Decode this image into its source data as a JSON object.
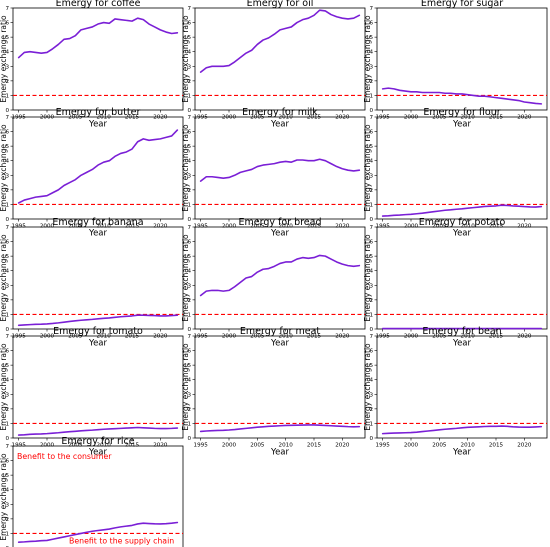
{
  "colors": {
    "series": "#7a1fd6",
    "reference": "#ff0000",
    "axes": "#000000"
  },
  "chart_data": [
    {
      "type": "line",
      "title": "Emergy for coffee",
      "xlabel": "Year",
      "ylabel": "Emergy exchange ratio",
      "xlim": [
        1994,
        2024
      ],
      "ylim": [
        0,
        7
      ],
      "xticks": [
        "1995",
        "2000",
        "2005",
        "2010",
        "2015",
        "2020"
      ],
      "yticks": [
        "0",
        "1",
        "2",
        "3",
        "4",
        "5",
        "6",
        "7"
      ],
      "reference_line": 1,
      "grid": false,
      "x": [
        1995,
        1996,
        1997,
        1998,
        1999,
        2000,
        2001,
        2002,
        2003,
        2004,
        2005,
        2006,
        2007,
        2008,
        2009,
        2010,
        2011,
        2012,
        2013,
        2014,
        2015,
        2016,
        2017,
        2018,
        2019,
        2020,
        2021,
        2022,
        2023
      ],
      "y": [
        3.6,
        3.95,
        4.0,
        3.95,
        3.9,
        3.95,
        4.2,
        4.5,
        4.85,
        4.9,
        5.1,
        5.5,
        5.6,
        5.7,
        5.9,
        6.0,
        5.95,
        6.25,
        6.2,
        6.15,
        6.1,
        6.3,
        6.2,
        5.9,
        5.7,
        5.5,
        5.35,
        5.25,
        5.3
      ]
    },
    {
      "type": "line",
      "title": "Emergy for oil",
      "xlabel": "Year",
      "ylabel": "Emergy exchange ratio",
      "xlim": [
        1994,
        2024
      ],
      "ylim": [
        0,
        7
      ],
      "xticks": [
        "1995",
        "2000",
        "2005",
        "2010",
        "2015",
        "2020"
      ],
      "yticks": [
        "0",
        "1",
        "2",
        "3",
        "4",
        "5",
        "6",
        "7"
      ],
      "reference_line": 1,
      "grid": false,
      "x": [
        1995,
        1996,
        1997,
        1998,
        1999,
        2000,
        2001,
        2002,
        2003,
        2004,
        2005,
        2006,
        2007,
        2008,
        2009,
        2010,
        2011,
        2012,
        2013,
        2014,
        2015,
        2016,
        2017,
        2018,
        2019,
        2020,
        2021,
        2022,
        2023
      ],
      "y": [
        2.6,
        2.9,
        3.0,
        3.0,
        3.0,
        3.05,
        3.3,
        3.6,
        3.9,
        4.1,
        4.5,
        4.8,
        4.95,
        5.2,
        5.5,
        5.6,
        5.7,
        6.0,
        6.2,
        6.3,
        6.5,
        6.85,
        6.8,
        6.55,
        6.4,
        6.3,
        6.25,
        6.3,
        6.5
      ]
    },
    {
      "type": "line",
      "title": "Emergy for sugar",
      "xlabel": "Year",
      "ylabel": "Emergy exchange ratio",
      "xlim": [
        1994,
        2024
      ],
      "ylim": [
        0,
        7
      ],
      "xticks": [
        "1995",
        "2000",
        "2005",
        "2010",
        "2015",
        "2020"
      ],
      "yticks": [
        "0",
        "1",
        "2",
        "3",
        "4",
        "5",
        "6",
        "7"
      ],
      "reference_line": 1,
      "grid": false,
      "x": [
        1995,
        1996,
        1997,
        1998,
        1999,
        2000,
        2001,
        2002,
        2003,
        2004,
        2005,
        2006,
        2007,
        2008,
        2009,
        2010,
        2011,
        2012,
        2013,
        2014,
        2015,
        2016,
        2017,
        2018,
        2019,
        2020,
        2021,
        2022,
        2023
      ],
      "y": [
        1.45,
        1.5,
        1.45,
        1.35,
        1.3,
        1.25,
        1.25,
        1.2,
        1.2,
        1.2,
        1.2,
        1.15,
        1.15,
        1.1,
        1.1,
        1.05,
        1.0,
        0.95,
        0.95,
        0.9,
        0.85,
        0.8,
        0.75,
        0.7,
        0.65,
        0.55,
        0.5,
        0.45,
        0.42
      ]
    },
    {
      "type": "line",
      "title": "Emergy for butter",
      "xlabel": "Year",
      "ylabel": "Emergy exchange ratio",
      "xlim": [
        1994,
        2024
      ],
      "ylim": [
        0,
        7
      ],
      "xticks": [
        "1995",
        "2000",
        "2005",
        "2010",
        "2015",
        "2020"
      ],
      "yticks": [
        "0",
        "1",
        "2",
        "3",
        "4",
        "5",
        "6",
        "7"
      ],
      "reference_line": 1,
      "grid": false,
      "x": [
        1995,
        1996,
        1997,
        1998,
        1999,
        2000,
        2001,
        2002,
        2003,
        2004,
        2005,
        2006,
        2007,
        2008,
        2009,
        2010,
        2011,
        2012,
        2013,
        2014,
        2015,
        2016,
        2017,
        2018,
        2019,
        2020,
        2021,
        2022,
        2023
      ],
      "y": [
        1.1,
        1.3,
        1.4,
        1.5,
        1.55,
        1.6,
        1.8,
        2.0,
        2.3,
        2.5,
        2.7,
        3.0,
        3.2,
        3.4,
        3.7,
        3.9,
        4.0,
        4.3,
        4.5,
        4.6,
        4.8,
        5.3,
        5.5,
        5.4,
        5.45,
        5.5,
        5.6,
        5.7,
        6.1
      ]
    },
    {
      "type": "line",
      "title": "Emergy for milk",
      "xlabel": "Year",
      "ylabel": "Emergy exchange ratio",
      "xlim": [
        1994,
        2024
      ],
      "ylim": [
        0,
        7
      ],
      "xticks": [
        "1995",
        "2000",
        "2005",
        "2010",
        "2015",
        "2020"
      ],
      "yticks": [
        "0",
        "1",
        "2",
        "3",
        "4",
        "5",
        "6",
        "7"
      ],
      "reference_line": 1,
      "grid": false,
      "x": [
        1995,
        1996,
        1997,
        1998,
        1999,
        2000,
        2001,
        2002,
        2003,
        2004,
        2005,
        2006,
        2007,
        2008,
        2009,
        2010,
        2011,
        2012,
        2013,
        2014,
        2015,
        2016,
        2017,
        2018,
        2019,
        2020,
        2021,
        2022,
        2023
      ],
      "y": [
        2.6,
        2.9,
        2.9,
        2.85,
        2.8,
        2.85,
        3.0,
        3.2,
        3.3,
        3.4,
        3.6,
        3.7,
        3.75,
        3.8,
        3.9,
        3.95,
        3.9,
        4.05,
        4.05,
        4.0,
        4.0,
        4.1,
        4.0,
        3.8,
        3.6,
        3.45,
        3.35,
        3.3,
        3.35
      ]
    },
    {
      "type": "line",
      "title": "Emergy for flour",
      "xlabel": "Year",
      "ylabel": "Emergy exchange ratio",
      "xlim": [
        1994,
        2024
      ],
      "ylim": [
        0,
        7
      ],
      "xticks": [
        "1995",
        "2000",
        "2005",
        "2010",
        "2015",
        "2020"
      ],
      "yticks": [
        "0",
        "1",
        "2",
        "3",
        "4",
        "5",
        "6",
        "7"
      ],
      "reference_line": 1,
      "grid": false,
      "x": [
        1995,
        1996,
        1997,
        1998,
        1999,
        2000,
        2001,
        2002,
        2003,
        2004,
        2005,
        2006,
        2007,
        2008,
        2009,
        2010,
        2011,
        2012,
        2013,
        2014,
        2015,
        2016,
        2017,
        2018,
        2019,
        2020,
        2021,
        2022,
        2023
      ],
      "y": [
        0.2,
        0.22,
        0.25,
        0.27,
        0.3,
        0.32,
        0.36,
        0.4,
        0.45,
        0.5,
        0.55,
        0.6,
        0.63,
        0.67,
        0.7,
        0.74,
        0.78,
        0.82,
        0.86,
        0.88,
        0.9,
        0.95,
        0.93,
        0.9,
        0.88,
        0.85,
        0.83,
        0.82,
        0.85
      ]
    },
    {
      "type": "line",
      "title": "Emergy for banana",
      "xlabel": "Year",
      "ylabel": "Emergy exchange ratio",
      "xlim": [
        1994,
        2024
      ],
      "ylim": [
        0,
        7
      ],
      "xticks": [
        "1995",
        "2000",
        "2005",
        "2010",
        "2015",
        "2020"
      ],
      "yticks": [
        "0",
        "1",
        "2",
        "3",
        "4",
        "5",
        "6",
        "7"
      ],
      "reference_line": 1,
      "grid": false,
      "x": [
        1995,
        1996,
        1997,
        1998,
        1999,
        2000,
        2001,
        2002,
        2003,
        2004,
        2005,
        2006,
        2007,
        2008,
        2009,
        2010,
        2011,
        2012,
        2013,
        2014,
        2015,
        2016,
        2017,
        2018,
        2019,
        2020,
        2021,
        2022,
        2023
      ],
      "y": [
        0.25,
        0.28,
        0.3,
        0.32,
        0.33,
        0.35,
        0.38,
        0.42,
        0.47,
        0.52,
        0.56,
        0.6,
        0.63,
        0.66,
        0.7,
        0.73,
        0.76,
        0.8,
        0.84,
        0.87,
        0.9,
        0.95,
        0.95,
        0.93,
        0.92,
        0.9,
        0.9,
        0.92,
        0.95
      ]
    },
    {
      "type": "line",
      "title": "Emergy for bread",
      "xlabel": "Year",
      "ylabel": "Emergy exchange ratio",
      "xlim": [
        1994,
        2024
      ],
      "ylim": [
        0,
        7
      ],
      "xticks": [
        "1995",
        "2000",
        "2005",
        "2010",
        "2015",
        "2020"
      ],
      "yticks": [
        "0",
        "1",
        "2",
        "3",
        "4",
        "5",
        "6",
        "7"
      ],
      "reference_line": 1,
      "grid": false,
      "x": [
        1995,
        1996,
        1997,
        1998,
        1999,
        2000,
        2001,
        2002,
        2003,
        2004,
        2005,
        2006,
        2007,
        2008,
        2009,
        2010,
        2011,
        2012,
        2013,
        2014,
        2015,
        2016,
        2017,
        2018,
        2019,
        2020,
        2021,
        2022,
        2023
      ],
      "y": [
        2.3,
        2.6,
        2.65,
        2.65,
        2.6,
        2.65,
        2.9,
        3.2,
        3.5,
        3.6,
        3.9,
        4.1,
        4.15,
        4.3,
        4.5,
        4.6,
        4.6,
        4.8,
        4.9,
        4.85,
        4.9,
        5.05,
        5.0,
        4.8,
        4.6,
        4.45,
        4.35,
        4.3,
        4.35
      ]
    },
    {
      "type": "line",
      "title": "Emergy for potato",
      "xlabel": "Year",
      "ylabel": "Emergy exchange ratio",
      "xlim": [
        1994,
        2024
      ],
      "ylim": [
        0,
        7
      ],
      "xticks": [
        "1995",
        "2000",
        "2005",
        "2010",
        "2015",
        "2020"
      ],
      "yticks": [
        "0",
        "1",
        "2",
        "3",
        "4",
        "5",
        "6",
        "7"
      ],
      "reference_line": 1,
      "grid": false,
      "x": [
        1995,
        1996,
        1997,
        1998,
        1999,
        2000,
        2001,
        2002,
        2003,
        2004,
        2005,
        2006,
        2007,
        2008,
        2009,
        2010,
        2011,
        2012,
        2013,
        2014,
        2015,
        2016,
        2017,
        2018,
        2019,
        2020,
        2021,
        2022,
        2023
      ],
      "y": [
        0.03,
        0.03,
        0.03,
        0.03,
        0.03,
        0.03,
        0.03,
        0.03,
        0.03,
        0.03,
        0.03,
        0.03,
        0.03,
        0.03,
        0.03,
        0.03,
        0.03,
        0.03,
        0.03,
        0.03,
        0.03,
        0.03,
        0.03,
        0.03,
        0.03,
        0.03,
        0.03,
        0.03,
        0.03
      ]
    },
    {
      "type": "line",
      "title": "Emergy for tomato",
      "xlabel": "Year",
      "ylabel": "Emergy exchange ratio",
      "xlim": [
        1994,
        2024
      ],
      "ylim": [
        0,
        7
      ],
      "xticks": [
        "1995",
        "2000",
        "2005",
        "2010",
        "2015",
        "2020"
      ],
      "yticks": [
        "0",
        "1",
        "2",
        "3",
        "4",
        "5",
        "6",
        "7"
      ],
      "reference_line": 1,
      "grid": false,
      "x": [
        1995,
        1996,
        1997,
        1998,
        1999,
        2000,
        2001,
        2002,
        2003,
        2004,
        2005,
        2006,
        2007,
        2008,
        2009,
        2010,
        2011,
        2012,
        2013,
        2014,
        2015,
        2016,
        2017,
        2018,
        2019,
        2020,
        2021,
        2022,
        2023
      ],
      "y": [
        0.2,
        0.22,
        0.25,
        0.27,
        0.28,
        0.3,
        0.33,
        0.36,
        0.4,
        0.43,
        0.46,
        0.49,
        0.52,
        0.54,
        0.57,
        0.6,
        0.62,
        0.64,
        0.66,
        0.68,
        0.7,
        0.72,
        0.7,
        0.68,
        0.66,
        0.65,
        0.65,
        0.66,
        0.68
      ]
    },
    {
      "type": "line",
      "title": "Emergy for meat",
      "xlabel": "Year",
      "ylabel": "Emergy exchange ratio",
      "xlim": [
        1994,
        2024
      ],
      "ylim": [
        0,
        7
      ],
      "xticks": [
        "1995",
        "2000",
        "2005",
        "2010",
        "2015",
        "2020"
      ],
      "yticks": [
        "0",
        "1",
        "2",
        "3",
        "4",
        "5",
        "6",
        "7"
      ],
      "reference_line": 1,
      "grid": false,
      "x": [
        1995,
        1996,
        1997,
        1998,
        1999,
        2000,
        2001,
        2002,
        2003,
        2004,
        2005,
        2006,
        2007,
        2008,
        2009,
        2010,
        2011,
        2012,
        2013,
        2014,
        2015,
        2016,
        2017,
        2018,
        2019,
        2020,
        2021,
        2022,
        2023
      ],
      "y": [
        0.45,
        0.48,
        0.5,
        0.52,
        0.53,
        0.55,
        0.58,
        0.62,
        0.66,
        0.7,
        0.74,
        0.77,
        0.8,
        0.82,
        0.84,
        0.86,
        0.87,
        0.88,
        0.89,
        0.9,
        0.9,
        0.88,
        0.86,
        0.84,
        0.82,
        0.8,
        0.78,
        0.77,
        0.78
      ]
    },
    {
      "type": "line",
      "title": "Emergy for bean",
      "xlabel": "Year",
      "ylabel": "Emergy exchange ratio",
      "xlim": [
        1994,
        2024
      ],
      "ylim": [
        0,
        7
      ],
      "xticks": [
        "1995",
        "2000",
        "2005",
        "2010",
        "2015",
        "2020"
      ],
      "yticks": [
        "0",
        "1",
        "2",
        "3",
        "4",
        "5",
        "6",
        "7"
      ],
      "reference_line": 1,
      "grid": false,
      "x": [
        1995,
        1996,
        1997,
        1998,
        1999,
        2000,
        2001,
        2002,
        2003,
        2004,
        2005,
        2006,
        2007,
        2008,
        2009,
        2010,
        2011,
        2012,
        2013,
        2014,
        2015,
        2016,
        2017,
        2018,
        2019,
        2020,
        2021,
        2022,
        2023
      ],
      "y": [
        0.3,
        0.32,
        0.34,
        0.35,
        0.36,
        0.37,
        0.4,
        0.44,
        0.48,
        0.52,
        0.56,
        0.6,
        0.63,
        0.66,
        0.7,
        0.73,
        0.75,
        0.77,
        0.79,
        0.8,
        0.8,
        0.82,
        0.8,
        0.77,
        0.75,
        0.74,
        0.74,
        0.76,
        0.78
      ]
    },
    {
      "type": "line",
      "title": "Emergy for rice",
      "xlabel": "Year",
      "ylabel": "Emergy exchange ratio",
      "xlim": [
        1994,
        2024
      ],
      "ylim": [
        0,
        7
      ],
      "xticks": [
        "1995",
        "2000",
        "2005",
        "2010",
        "2015",
        "2020"
      ],
      "yticks": [
        "0",
        "1",
        "2",
        "3",
        "4",
        "5",
        "6",
        "7"
      ],
      "reference_line": 1,
      "grid": false,
      "annotations": [
        "Benefit to the consumer",
        "Benefit to the supply chain"
      ],
      "x": [
        1995,
        1996,
        1997,
        1998,
        1999,
        2000,
        2001,
        2002,
        2003,
        2004,
        2005,
        2006,
        2007,
        2008,
        2009,
        2010,
        2011,
        2012,
        2013,
        2014,
        2015,
        2016,
        2017,
        2018,
        2019,
        2020,
        2021,
        2022,
        2023
      ],
      "y": [
        0.4,
        0.42,
        0.45,
        0.47,
        0.5,
        0.52,
        0.6,
        0.68,
        0.76,
        0.84,
        0.92,
        1.0,
        1.08,
        1.15,
        1.2,
        1.25,
        1.3,
        1.38,
        1.45,
        1.5,
        1.55,
        1.65,
        1.7,
        1.68,
        1.66,
        1.65,
        1.67,
        1.7,
        1.75
      ]
    }
  ]
}
